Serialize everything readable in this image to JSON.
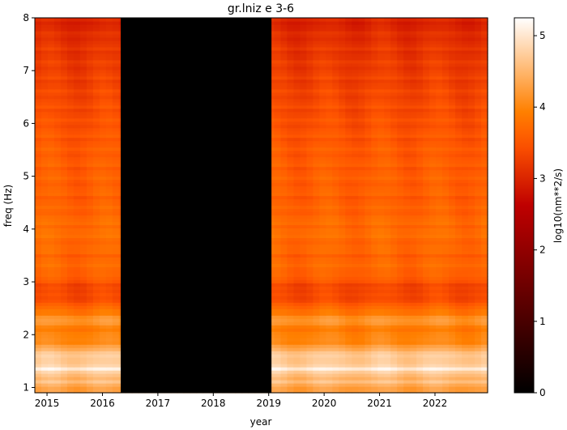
{
  "chart_data": {
    "type": "heatmap",
    "title": "gr.lniz e 3-6",
    "xlabel": "year",
    "ylabel": "freq (Hz)",
    "colorbar_label": "log10(nm**2/s)",
    "colormap": "gist_heat",
    "xlim": [
      2014.78,
      2022.95
    ],
    "ylim": [
      0.9,
      8.0
    ],
    "clim": [
      0,
      5.25
    ],
    "x_ticks": [
      2015,
      2016,
      2017,
      2018,
      2019,
      2020,
      2021,
      2022
    ],
    "x_tick_labels": [
      "2015",
      "2016",
      "2017",
      "2018",
      "2019",
      "2020",
      "2021",
      "2022"
    ],
    "y_ticks": [
      1,
      2,
      3,
      4,
      5,
      6,
      7,
      8
    ],
    "y_tick_labels": [
      "1",
      "2",
      "3",
      "4",
      "5",
      "6",
      "7",
      "8"
    ],
    "colorbar_ticks": [
      0,
      1,
      2,
      3,
      4,
      5
    ],
    "colorbar_tick_labels": [
      "0",
      "1",
      "2",
      "3",
      "4",
      "5"
    ],
    "data_gap": [
      2016.33,
      2019.05
    ],
    "freq_profile": [
      {
        "freq": 0.9,
        "value": 4.2
      },
      {
        "freq": 1.0,
        "value": 4.3
      },
      {
        "freq": 1.1,
        "value": 4.6
      },
      {
        "freq": 1.2,
        "value": 4.4
      },
      {
        "freq": 1.35,
        "value": 5.1
      },
      {
        "freq": 1.45,
        "value": 4.6
      },
      {
        "freq": 1.6,
        "value": 4.8
      },
      {
        "freq": 1.75,
        "value": 4.3
      },
      {
        "freq": 1.9,
        "value": 4.0
      },
      {
        "freq": 2.1,
        "value": 3.9
      },
      {
        "freq": 2.3,
        "value": 4.2
      },
      {
        "freq": 2.45,
        "value": 3.8
      },
      {
        "freq": 2.6,
        "value": 3.5
      },
      {
        "freq": 2.8,
        "value": 3.3
      },
      {
        "freq": 3.0,
        "value": 3.45
      },
      {
        "freq": 3.2,
        "value": 3.7
      },
      {
        "freq": 3.5,
        "value": 3.65
      },
      {
        "freq": 4.0,
        "value": 3.75
      },
      {
        "freq": 4.5,
        "value": 3.6
      },
      {
        "freq": 5.0,
        "value": 3.6
      },
      {
        "freq": 5.5,
        "value": 3.55
      },
      {
        "freq": 6.0,
        "value": 3.45
      },
      {
        "freq": 6.5,
        "value": 3.35
      },
      {
        "freq": 7.0,
        "value": 3.25
      },
      {
        "freq": 7.5,
        "value": 3.15
      },
      {
        "freq": 8.0,
        "value": 2.95
      }
    ]
  }
}
